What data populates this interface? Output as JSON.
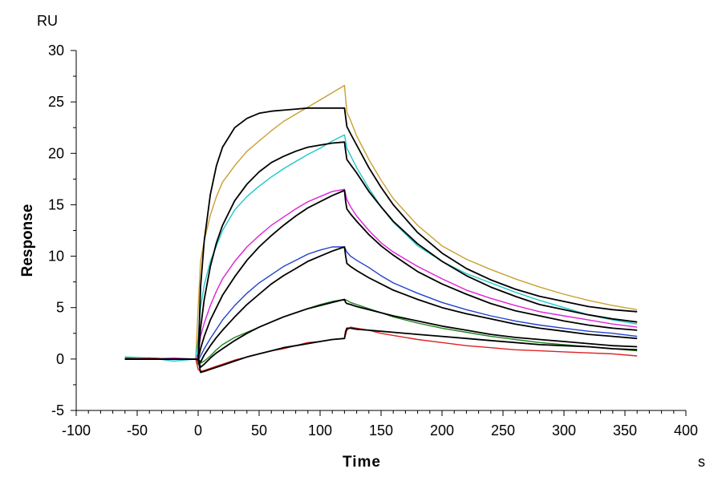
{
  "chart_data": {
    "type": "line",
    "title": "",
    "xlabel": "Time",
    "ylabel": "Response",
    "x_unit": "s",
    "y_unit": "RU",
    "xlim": [
      -100,
      400
    ],
    "ylim": [
      -5,
      30
    ],
    "x_ticks": [
      -100,
      -50,
      0,
      50,
      100,
      150,
      200,
      250,
      300,
      350,
      400
    ],
    "y_ticks": [
      -5,
      0,
      5,
      10,
      15,
      20,
      25,
      30
    ],
    "grid": false,
    "series": [
      {
        "color": "#c8a032",
        "kind": "measured",
        "x": [
          -60,
          -40,
          -20,
          -2,
          0,
          2,
          5,
          10,
          15,
          20,
          30,
          40,
          50,
          60,
          70,
          80,
          90,
          100,
          110,
          120,
          122,
          125,
          130,
          140,
          150,
          160,
          180,
          200,
          220,
          240,
          260,
          280,
          300,
          320,
          340,
          360
        ],
        "y": [
          0.2,
          0.1,
          0.0,
          0.0,
          5.0,
          9.5,
          11.5,
          14.0,
          15.8,
          17.2,
          18.8,
          20.2,
          21.2,
          22.2,
          23.1,
          23.8,
          24.5,
          25.2,
          25.9,
          26.6,
          24.0,
          23.2,
          21.7,
          19.4,
          17.4,
          15.6,
          13.0,
          11.0,
          9.7,
          8.7,
          7.8,
          7.0,
          6.3,
          5.7,
          5.2,
          4.8
        ]
      },
      {
        "color": "#20c8c8",
        "kind": "measured",
        "x": [
          -60,
          -40,
          -20,
          -2,
          0,
          2,
          5,
          10,
          15,
          20,
          30,
          40,
          50,
          60,
          70,
          80,
          90,
          100,
          110,
          120,
          122,
          125,
          130,
          140,
          150,
          160,
          180,
          200,
          220,
          240,
          260,
          280,
          300,
          320,
          340,
          360
        ],
        "y": [
          0.2,
          0.1,
          -0.2,
          0.0,
          2.0,
          5.0,
          7.2,
          9.5,
          11.0,
          12.5,
          14.5,
          15.8,
          16.8,
          17.7,
          18.5,
          19.2,
          19.9,
          20.5,
          21.2,
          21.8,
          20.5,
          19.8,
          18.6,
          16.6,
          14.8,
          13.3,
          11.0,
          9.5,
          8.3,
          7.4,
          6.5,
          5.7,
          5.0,
          4.3,
          3.8,
          3.4
        ]
      },
      {
        "color": "#e020d8",
        "kind": "measured",
        "x": [
          -60,
          -40,
          -20,
          -2,
          0,
          2,
          5,
          10,
          15,
          20,
          30,
          40,
          50,
          60,
          70,
          80,
          90,
          100,
          110,
          120,
          122,
          125,
          130,
          140,
          150,
          160,
          180,
          200,
          220,
          240,
          260,
          280,
          300,
          320,
          340,
          360
        ],
        "y": [
          0.1,
          0.0,
          0.1,
          0.0,
          0.5,
          2.2,
          3.5,
          5.2,
          6.6,
          7.8,
          9.5,
          10.9,
          12.0,
          13.0,
          13.8,
          14.6,
          15.3,
          15.8,
          16.3,
          16.5,
          15.5,
          14.8,
          13.9,
          12.5,
          11.3,
          10.4,
          9.0,
          7.8,
          6.7,
          5.9,
          5.2,
          4.6,
          4.2,
          3.8,
          3.4,
          3.1
        ]
      },
      {
        "color": "#2040d0",
        "kind": "measured",
        "x": [
          -60,
          -40,
          -20,
          -2,
          0,
          2,
          5,
          10,
          15,
          20,
          30,
          40,
          50,
          60,
          70,
          80,
          90,
          100,
          110,
          120,
          122,
          125,
          130,
          140,
          150,
          160,
          180,
          200,
          220,
          240,
          260,
          280,
          300,
          320,
          340,
          360
        ],
        "y": [
          0.0,
          0.1,
          0.0,
          0.0,
          -0.2,
          0.3,
          1.0,
          2.0,
          2.9,
          3.8,
          5.2,
          6.4,
          7.4,
          8.2,
          9.0,
          9.6,
          10.2,
          10.6,
          10.9,
          10.9,
          10.4,
          10.0,
          9.6,
          8.9,
          8.1,
          7.4,
          6.4,
          5.5,
          4.8,
          4.2,
          3.7,
          3.3,
          3.0,
          2.7,
          2.5,
          2.2
        ]
      },
      {
        "color": "#208020",
        "kind": "measured",
        "x": [
          -60,
          -40,
          -20,
          -2,
          0,
          2,
          5,
          10,
          15,
          20,
          30,
          40,
          50,
          60,
          70,
          80,
          90,
          100,
          110,
          120,
          122,
          125,
          130,
          140,
          150,
          160,
          180,
          200,
          220,
          240,
          260,
          280,
          300,
          320,
          340,
          360
        ],
        "y": [
          0.1,
          0.0,
          0.0,
          0.0,
          -0.5,
          -0.4,
          -0.2,
          0.3,
          0.9,
          1.4,
          2.1,
          2.6,
          3.1,
          3.6,
          4.1,
          4.5,
          4.9,
          5.3,
          5.6,
          5.8,
          5.7,
          5.5,
          5.3,
          4.9,
          4.5,
          4.1,
          3.5,
          3.0,
          2.6,
          2.2,
          1.9,
          1.6,
          1.4,
          1.2,
          1.0,
          0.8
        ]
      },
      {
        "color": "#e02020",
        "kind": "measured",
        "x": [
          -60,
          -40,
          -20,
          -2,
          0,
          2,
          5,
          10,
          15,
          20,
          30,
          40,
          50,
          60,
          70,
          80,
          90,
          100,
          110,
          120,
          122,
          125,
          130,
          140,
          150,
          160,
          180,
          200,
          220,
          240,
          260,
          280,
          300,
          320,
          340,
          360
        ],
        "y": [
          0.0,
          0.1,
          0.0,
          0.0,
          -1.0,
          -1.2,
          -1.1,
          -0.9,
          -0.7,
          -0.5,
          -0.1,
          0.2,
          0.5,
          0.8,
          1.0,
          1.3,
          1.6,
          1.7,
          1.9,
          2.0,
          2.8,
          3.1,
          3.0,
          2.8,
          2.5,
          2.3,
          1.9,
          1.6,
          1.3,
          1.1,
          0.9,
          0.8,
          0.7,
          0.6,
          0.5,
          0.3
        ]
      },
      {
        "color": "#000000",
        "kind": "fit",
        "x": [
          -60,
          -2,
          0,
          2,
          5,
          10,
          15,
          20,
          30,
          40,
          50,
          60,
          70,
          80,
          90,
          100,
          110,
          120,
          121,
          122,
          125,
          130,
          140,
          150,
          160,
          180,
          200,
          220,
          240,
          260,
          280,
          300,
          320,
          340,
          360
        ],
        "y": [
          0.0,
          0.0,
          0.0,
          7.0,
          11.5,
          16.0,
          18.8,
          20.6,
          22.5,
          23.4,
          23.9,
          24.1,
          24.2,
          24.3,
          24.4,
          24.4,
          24.4,
          24.4,
          23.5,
          22.6,
          21.9,
          20.8,
          18.6,
          16.7,
          15.0,
          12.3,
          10.3,
          8.8,
          7.7,
          6.8,
          6.1,
          5.6,
          5.1,
          4.8,
          4.6
        ]
      },
      {
        "color": "#000000",
        "kind": "fit",
        "x": [
          -60,
          -2,
          0,
          2,
          5,
          10,
          15,
          20,
          30,
          40,
          50,
          60,
          70,
          80,
          90,
          100,
          110,
          120,
          121,
          122,
          125,
          130,
          140,
          150,
          160,
          180,
          200,
          220,
          240,
          260,
          280,
          300,
          320,
          340,
          360
        ],
        "y": [
          0.0,
          0.0,
          0.0,
          3.0,
          5.8,
          9.0,
          11.3,
          13.0,
          15.4,
          17.0,
          18.2,
          19.1,
          19.7,
          20.2,
          20.6,
          20.8,
          21.0,
          21.1,
          20.2,
          19.4,
          18.9,
          18.1,
          16.3,
          14.8,
          13.4,
          11.2,
          9.5,
          8.1,
          7.0,
          6.1,
          5.3,
          4.8,
          4.3,
          3.9,
          3.6
        ]
      },
      {
        "color": "#000000",
        "kind": "fit",
        "x": [
          -60,
          -2,
          0,
          2,
          5,
          10,
          15,
          20,
          30,
          40,
          50,
          60,
          70,
          80,
          90,
          100,
          110,
          120,
          121,
          122,
          125,
          130,
          140,
          150,
          160,
          180,
          200,
          220,
          240,
          260,
          280,
          300,
          320,
          340,
          360
        ],
        "y": [
          0.0,
          0.0,
          0.0,
          1.0,
          2.2,
          3.8,
          5.0,
          6.2,
          8.0,
          9.6,
          10.9,
          12.0,
          13.0,
          13.9,
          14.7,
          15.3,
          15.9,
          16.4,
          15.3,
          14.6,
          14.1,
          13.4,
          12.1,
          11.0,
          10.1,
          8.5,
          7.3,
          6.3,
          5.4,
          4.7,
          4.2,
          3.7,
          3.3,
          3.0,
          2.8
        ]
      },
      {
        "color": "#000000",
        "kind": "fit",
        "x": [
          -60,
          -2,
          0,
          2,
          5,
          10,
          15,
          20,
          30,
          40,
          50,
          60,
          70,
          80,
          90,
          100,
          110,
          120,
          121,
          122,
          125,
          130,
          140,
          150,
          160,
          180,
          200,
          220,
          240,
          260,
          280,
          300,
          320,
          340,
          360
        ],
        "y": [
          0.0,
          0.0,
          0.0,
          -0.3,
          0.4,
          1.3,
          2.1,
          2.8,
          4.1,
          5.3,
          6.3,
          7.3,
          8.1,
          8.8,
          9.5,
          10.0,
          10.5,
          10.9,
          10.0,
          9.3,
          9.0,
          8.6,
          7.9,
          7.3,
          6.7,
          5.8,
          5.0,
          4.4,
          3.9,
          3.4,
          3.0,
          2.7,
          2.4,
          2.2,
          2.0
        ]
      },
      {
        "color": "#000000",
        "kind": "fit",
        "x": [
          -60,
          -2,
          0,
          2,
          5,
          10,
          15,
          20,
          30,
          40,
          50,
          60,
          70,
          80,
          90,
          100,
          110,
          120,
          121,
          122,
          125,
          130,
          140,
          150,
          160,
          180,
          200,
          220,
          240,
          260,
          280,
          300,
          320,
          340,
          360
        ],
        "y": [
          0.0,
          0.0,
          0.0,
          -0.8,
          -0.5,
          0.1,
          0.6,
          1.0,
          1.8,
          2.5,
          3.1,
          3.6,
          4.1,
          4.5,
          4.9,
          5.2,
          5.5,
          5.8,
          5.5,
          5.4,
          5.3,
          5.1,
          4.8,
          4.5,
          4.2,
          3.7,
          3.2,
          2.8,
          2.4,
          2.1,
          1.9,
          1.7,
          1.5,
          1.3,
          1.2
        ]
      },
      {
        "color": "#000000",
        "kind": "fit",
        "x": [
          -60,
          -2,
          0,
          2,
          5,
          10,
          15,
          20,
          30,
          40,
          50,
          60,
          70,
          80,
          90,
          100,
          110,
          120,
          121,
          122,
          125,
          130,
          140,
          150,
          160,
          180,
          200,
          220,
          240,
          260,
          280,
          300,
          320,
          340,
          360
        ],
        "y": [
          0.0,
          0.0,
          0.0,
          -1.3,
          -1.2,
          -1.0,
          -0.8,
          -0.6,
          -0.2,
          0.2,
          0.5,
          0.8,
          1.1,
          1.3,
          1.5,
          1.7,
          1.9,
          2.0,
          2.7,
          3.0,
          3.0,
          2.9,
          2.8,
          2.7,
          2.6,
          2.4,
          2.2,
          2.0,
          1.8,
          1.6,
          1.4,
          1.3,
          1.2,
          1.0,
          0.9
        ]
      }
    ]
  }
}
